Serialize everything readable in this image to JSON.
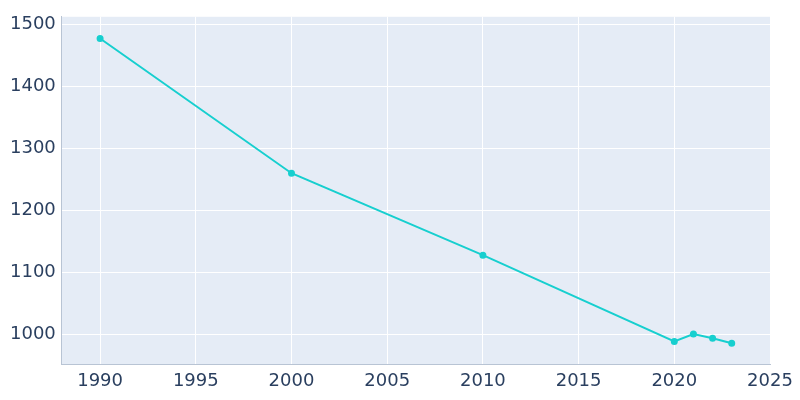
{
  "chart_data": {
    "type": "line",
    "x": [
      1990,
      2000,
      2010,
      2020,
      2021,
      2022,
      2023
    ],
    "values": [
      1477,
      1260,
      1128,
      989,
      1001,
      994,
      986
    ],
    "color": "#17cfcf",
    "marker": "circle",
    "line_style": "solid",
    "xlim": [
      1988,
      2025
    ],
    "xticks": [
      1990,
      1995,
      2000,
      2005,
      2010,
      2015,
      2020,
      2025
    ],
    "ylim": [
      952,
      1512
    ],
    "yticks": [
      1000,
      1100,
      1200,
      1300,
      1400,
      1500
    ],
    "grid": true
  }
}
